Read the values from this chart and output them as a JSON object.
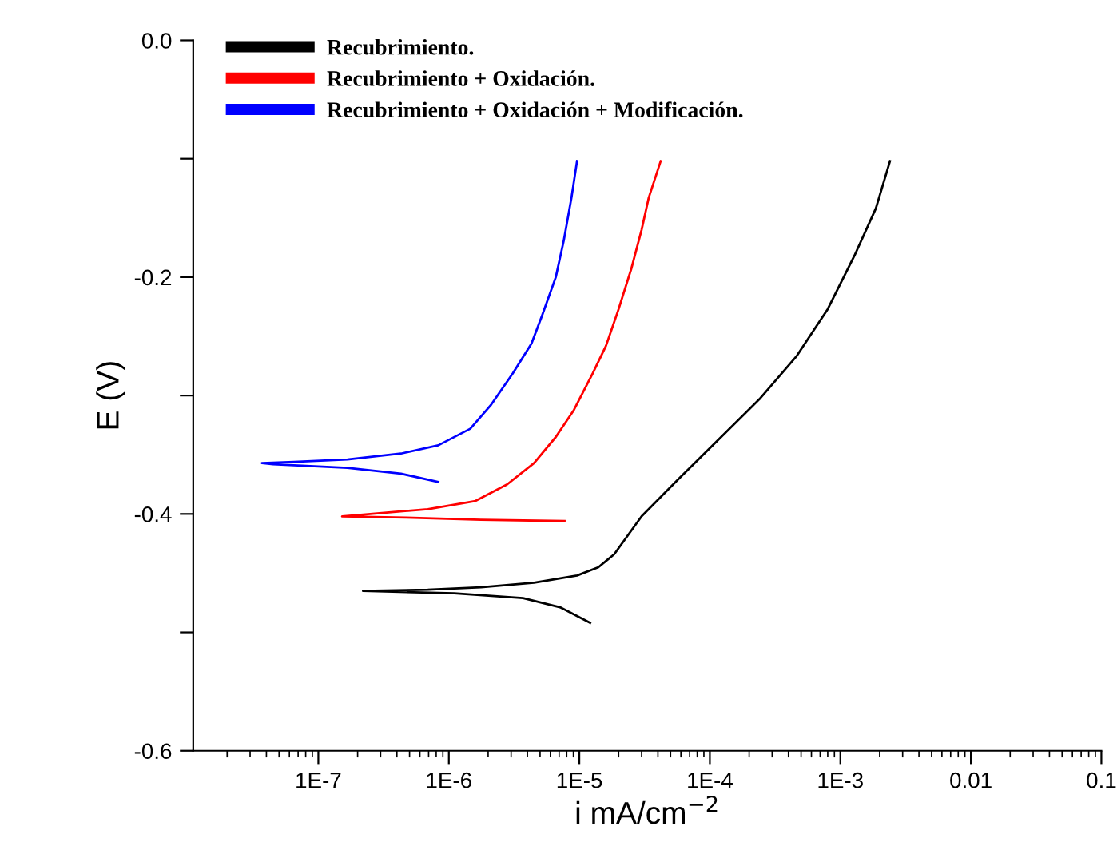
{
  "chart_data": {
    "type": "line",
    "xlabel": "i mA/cm$^{−2}$",
    "ylabel": "E (V)",
    "log": "x",
    "legend": "top left",
    "grid": false,
    "xlim": [
      1.1e-08,
      0.1
    ],
    "ylim": [
      -0.6,
      0.0
    ],
    "xticks": [
      {
        "value": 1e-07,
        "label": "1E-7"
      },
      {
        "value": 1e-06,
        "label": "1E-6"
      },
      {
        "value": 1e-05,
        "label": "1E-5"
      },
      {
        "value": 0.0001,
        "label": "1E-4"
      },
      {
        "value": 0.001,
        "label": "1E-3"
      },
      0.01,
      0.1
    ],
    "yticks": [
      {
        "value": 0.0,
        "label": "0.0"
      },
      {
        "value": -0.1,
        "label": null
      },
      {
        "value": -0.2,
        "label": "-0.2"
      },
      {
        "value": -0.3,
        "label": null
      },
      {
        "value": -0.4,
        "label": "-0.4"
      },
      {
        "value": -0.5,
        "label": null
      },
      {
        "value": -0.6,
        "label": "-0.6"
      }
    ],
    "series": [
      {
        "name": "Recubrimiento.",
        "color": "#000000",
        "x": [
          0.0024,
          0.00187,
          0.00128,
          0.0008,
          0.00046,
          0.00024,
          0.000122,
          5.7e-05,
          3e-05,
          1.85e-05,
          1.4e-05,
          9.6e-06,
          4.5e-06,
          1.76e-06,
          6.9e-07,
          2.2e-07,
          1.1e-06,
          3.7e-06,
          7.2e-06,
          1.21e-05
        ],
        "values": [
          -0.102,
          -0.142,
          -0.182,
          -0.227,
          -0.267,
          -0.303,
          -0.335,
          -0.371,
          -0.402,
          -0.434,
          -0.445,
          -0.452,
          -0.458,
          -0.462,
          -0.464,
          -0.465,
          -0.467,
          -0.471,
          -0.479,
          -0.492
        ]
      },
      {
        "name": "Recubrimiento + Oxidación.",
        "color": "#ff0000",
        "x": [
          4.2e-05,
          3.4e-05,
          3e-05,
          2.5e-05,
          2e-05,
          1.6e-05,
          1.27e-05,
          9.1e-06,
          6.6e-06,
          4.5e-06,
          2.8e-06,
          1.6e-06,
          6.9e-07,
          3.2e-07,
          1.52e-07,
          4.7e-07,
          1.76e-06,
          7.7e-06
        ],
        "values": [
          -0.102,
          -0.133,
          -0.16,
          -0.193,
          -0.227,
          -0.258,
          -0.281,
          -0.312,
          -0.335,
          -0.357,
          -0.375,
          -0.389,
          -0.396,
          -0.399,
          -0.402,
          -0.403,
          -0.405,
          -0.406
        ]
      },
      {
        "name": "Recubrimiento + Oxidación + Modificación.",
        "color": "#0000ff",
        "x": [
          9.6e-06,
          8.7e-06,
          7.6e-06,
          6.6e-06,
          5.2e-06,
          4.3e-06,
          3.1e-06,
          2.1e-06,
          1.46e-06,
          8.3e-07,
          4.3e-07,
          1.67e-07,
          6.5e-08,
          3.7e-08,
          4.5e-08,
          1.67e-07,
          4.3e-07,
          8.3e-07
        ],
        "values": [
          -0.102,
          -0.133,
          -0.169,
          -0.2,
          -0.232,
          -0.256,
          -0.281,
          -0.308,
          -0.328,
          -0.342,
          -0.349,
          -0.354,
          -0.356,
          -0.357,
          -0.358,
          -0.361,
          -0.366,
          -0.373
        ]
      }
    ]
  }
}
